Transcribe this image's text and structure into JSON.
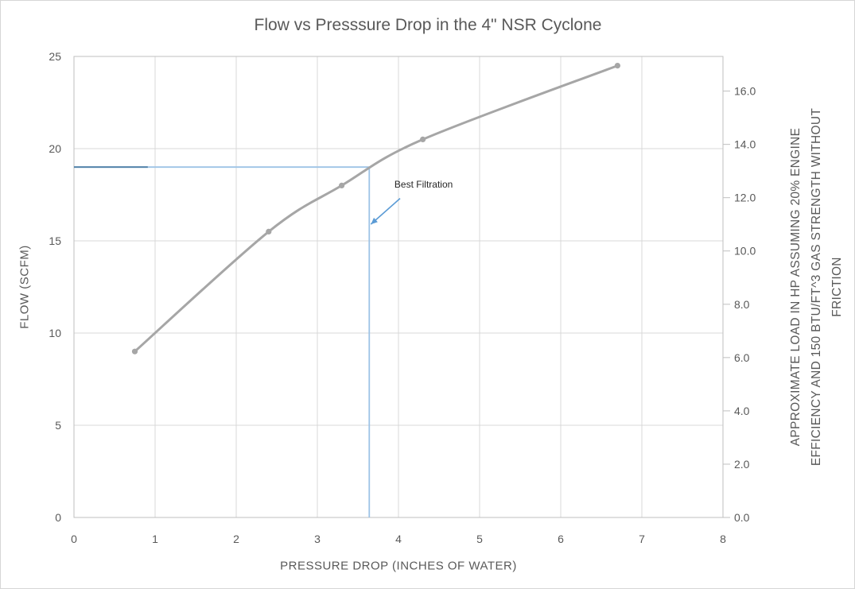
{
  "window": {
    "background": "#ffffff",
    "border_color": "#d6d6d6"
  },
  "chart_data": {
    "type": "line",
    "title": "Flow vs Presssure Drop in the 4\" NSR Cyclone",
    "title_color": "#595959",
    "grid_on": true,
    "grid_color": "#d9d9d9",
    "plot_border_color": "#bfbfbf",
    "tick_label_color": "#595959",
    "legend": "none",
    "x_axis": {
      "label": "PRESSURE DROP (INCHES OF WATER)",
      "range": [
        0,
        8
      ],
      "ticks": [
        0,
        1,
        2,
        3,
        4,
        5,
        6,
        7,
        8
      ]
    },
    "y_left_axis": {
      "label": "FLOW (SCFM)",
      "range": [
        0,
        25
      ],
      "ticks": [
        0,
        5,
        10,
        15,
        20,
        25
      ]
    },
    "y_right_axis": {
      "label_lines": [
        "APPROXIMATE LOAD IN HP ASSUMING 20% ENGINE",
        "EFFICIENCY AND 150 BTU/FT^3 GAS STRENGTH WITHOUT",
        "FRICTION"
      ],
      "range": [
        0,
        17.3
      ],
      "ticks": [
        "0.0",
        "2.0",
        "4.0",
        "6.0",
        "8.0",
        "10.0",
        "12.0",
        "14.0",
        "16.0"
      ],
      "tick_values": [
        0,
        2,
        4,
        6,
        8,
        10,
        12,
        14,
        16
      ]
    },
    "series": [
      {
        "name": "Flow vs Pressure Drop",
        "line_color": "#a6a6a6",
        "marker_color": "#a6a6a6",
        "line_width": 3,
        "smooth": true,
        "points": [
          {
            "x": 0.75,
            "y": 9.0
          },
          {
            "x": 2.4,
            "y": 15.5
          },
          {
            "x": 3.3,
            "y": 18.0
          },
          {
            "x": 4.3,
            "y": 20.5
          },
          {
            "x": 6.7,
            "y": 24.5
          }
        ]
      }
    ],
    "reference_crosshair": {
      "flow": 19,
      "pressure": 3.64,
      "line_color": "#9dc3e6",
      "start_segment_color": "#4e7fa6",
      "start_segment_end_pressure": 0.91
    },
    "annotation": {
      "text": "Best Filtration",
      "text_color": "#262626",
      "text_center": {
        "pressure": 4.31,
        "flow": 18.05
      },
      "arrow": {
        "color": "#5b9bd5",
        "from": {
          "pressure": 4.02,
          "flow": 17.3
        },
        "to": {
          "pressure": 3.66,
          "flow": 15.9
        }
      }
    }
  }
}
